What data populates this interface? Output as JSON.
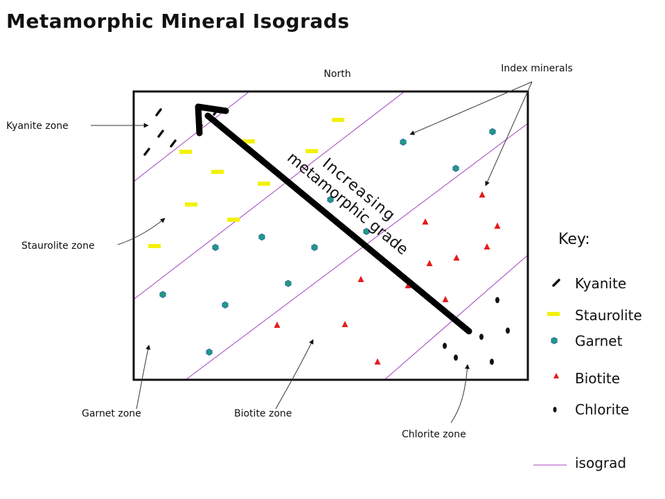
{
  "title": "Metamorphic Mineral Isograds",
  "north_label": "North",
  "index_minerals_label": "Index minerals",
  "arrow_label": {
    "line1": "Increasing",
    "line2": "metamorphic grade"
  },
  "zones": {
    "kyanite": "Kyanite zone",
    "staurolite": "Staurolite zone",
    "garnet": "Garnet zone",
    "biotite": "Biotite zone",
    "chlorite": "Chlorite zone"
  },
  "key": {
    "title": "Key:",
    "items": [
      {
        "label": "Kyanite",
        "symbol": "kyanite-symbol-icon"
      },
      {
        "label": "Staurolite",
        "symbol": "staurolite-symbol-icon"
      },
      {
        "label": "Garnet",
        "symbol": "garnet-symbol-icon"
      },
      {
        "label": "Biotite",
        "symbol": "biotite-symbol-icon"
      },
      {
        "label": "Chlorite",
        "symbol": "chlorite-symbol-icon"
      },
      {
        "label": "isograd",
        "symbol": "isograd-line-icon"
      }
    ]
  },
  "colors": {
    "isograd": "#a040c0",
    "staurolite": "#f2f20a",
    "garnet": "#1e9e78",
    "garnet_stroke": "#2f6fb0",
    "biotite": "#e41c1c",
    "kyanite": "#111111",
    "chlorite": "#111111"
  }
}
